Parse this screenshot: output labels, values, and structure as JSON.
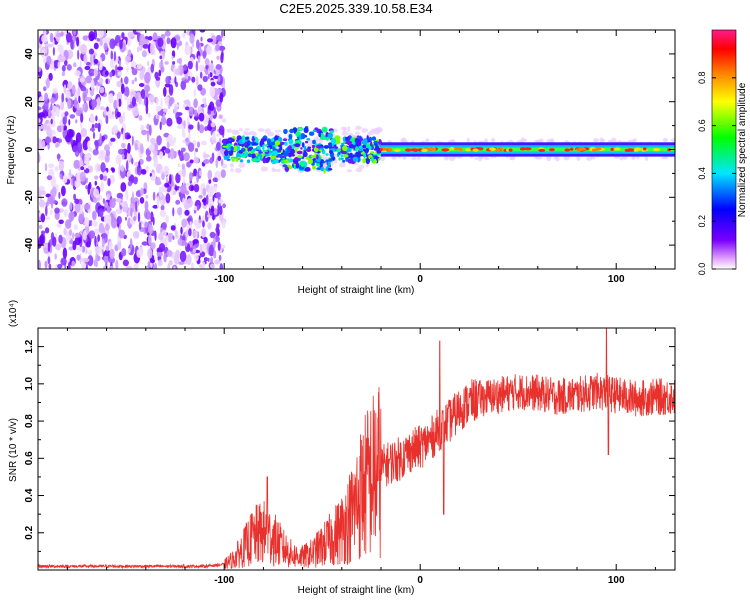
{
  "title": "C2E5.2025.339.10.58.E34",
  "chart_data": [
    {
      "type": "heatmap",
      "name": "spectrogram",
      "xlabel": "Height of straight line (km)",
      "ylabel": "Frequency (Hz)",
      "xlim": [
        -195,
        130
      ],
      "ylim": [
        -50,
        50
      ],
      "xticks": [
        -100,
        0,
        100
      ],
      "xtick_labels": [
        "-100",
        "0",
        "100"
      ],
      "yticks": [
        40,
        20,
        0,
        -20,
        -40
      ],
      "ytick_labels": [
        "40",
        "20",
        "0",
        "-20",
        "-40"
      ],
      "noise_region_x": [
        -195,
        -100
      ],
      "signal_band_hz": [
        -3,
        3
      ],
      "colorbar": {
        "label": "Normalized spectral amplitude",
        "range": [
          0,
          1
        ],
        "ticks": [
          0.0,
          0.2,
          0.4,
          0.6,
          0.8
        ],
        "tick_labels": [
          "0.0",
          "0.2",
          "0.4",
          "0.6",
          "0.8"
        ],
        "colors": [
          "#ffffff",
          "#e6a8ff",
          "#7a00ff",
          "#0000ff",
          "#00e6ff",
          "#00ff00",
          "#ffff00",
          "#ff8000",
          "#ff0000",
          "#ff1a8c"
        ]
      }
    },
    {
      "type": "line",
      "name": "snr",
      "xlabel": "Height of straight line (km)",
      "ylabel": "SNR (10 * v/v)",
      "y_multiplier": "(x10⁴)",
      "xlim": [
        -195,
        130
      ],
      "ylim": [
        0,
        1.3
      ],
      "xticks": [
        -100,
        0,
        100
      ],
      "xtick_labels": [
        "-100",
        "0",
        "100"
      ],
      "yticks": [
        0.2,
        0.4,
        0.6,
        0.8,
        1.0,
        1.2
      ],
      "ytick_labels": [
        "0.2",
        "0.4",
        "0.6",
        "0.8",
        "1.0",
        "1.2"
      ],
      "line_color": "#e8312c",
      "series": [
        {
          "name": "SNR",
          "x": [
            -195,
            -150,
            -110,
            -100,
            -95,
            -90,
            -85,
            -80,
            -75,
            -70,
            -65,
            -60,
            -55,
            -50,
            -45,
            -40,
            -35,
            -30,
            -25,
            -20,
            -15,
            -10,
            -5,
            0,
            5,
            10,
            15,
            20,
            25,
            30,
            40,
            50,
            60,
            70,
            80,
            90,
            100,
            110,
            120,
            130
          ],
          "values": [
            0.02,
            0.02,
            0.02,
            0.03,
            0.06,
            0.12,
            0.18,
            0.2,
            0.17,
            0.12,
            0.08,
            0.07,
            0.09,
            0.13,
            0.17,
            0.22,
            0.3,
            0.42,
            0.5,
            0.55,
            0.58,
            0.6,
            0.64,
            0.66,
            0.7,
            0.76,
            0.8,
            0.86,
            0.9,
            0.92,
            0.94,
            0.96,
            0.95,
            0.93,
            0.94,
            0.96,
            0.94,
            0.92,
            0.93,
            0.93
          ]
        }
      ],
      "spikes": [
        {
          "x": -78,
          "y": 0.5
        },
        {
          "x": 10,
          "y": 1.23
        },
        {
          "x": 12,
          "y": 0.3
        },
        {
          "x": 95,
          "y": 1.3
        },
        {
          "x": 96,
          "y": 0.62
        }
      ]
    }
  ]
}
